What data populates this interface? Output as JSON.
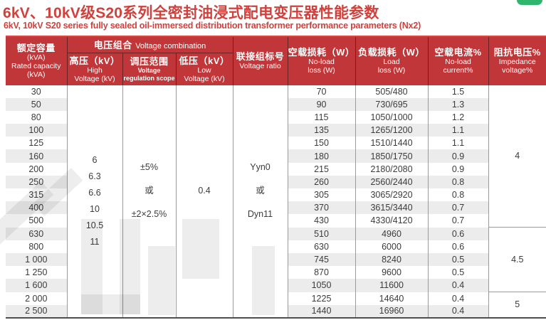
{
  "title": "6kV、10kV级S20系列全密封油浸式配电变压器性能参数",
  "subtitle": "6kV, 10kV S20 series fully sealed oil-immersed distribution transformer performance parameters (Nx2)",
  "colors": {
    "title_red": "#d2403c",
    "header_bg": "#c13638",
    "header_top_line": "#da453f",
    "header_divider": "#6b2021",
    "row_stripe": "#ececec",
    "grid_line": "#9a9a9a",
    "table_bottom_line": "#4e4e4e",
    "body_text": "#3c3c3c",
    "green_tab": "#2fb56d"
  },
  "table": {
    "col_headers": {
      "capacity": {
        "zh": "额定容量",
        "l2": "(kVA)",
        "en": "Rated capacity",
        "l4": "(kVA)"
      },
      "voltage_group": {
        "zh": "电压组合",
        "en": "Voltage combination"
      },
      "high": {
        "zh": "高压（kV）",
        "en1": "High",
        "en2": "Voltage (kV)"
      },
      "regulation": {
        "zh": "调压范围",
        "en1": "Voltage",
        "en2": "regulation scope"
      },
      "low": {
        "zh": "低压（kV）",
        "en1": "Low",
        "en2": "Voltage (kV)"
      },
      "vector": {
        "zh": "联接组标号",
        "en": "Voltage ratio"
      },
      "no_load_loss": {
        "zh": "空载损耗（W）",
        "en1": "No-load",
        "en2": "loss (W)"
      },
      "load_loss": {
        "zh": "负载损耗（W）",
        "en1": "Load",
        "en2": "loss (W)"
      },
      "no_load_current": {
        "zh": "空载电流%",
        "en1": "No-load",
        "en2": "current%"
      },
      "impedance": {
        "zh": "阻抗电压%",
        "en1": "Impedance",
        "en2": "voltage%"
      }
    },
    "rows": [
      {
        "capacity": "30",
        "no_load_loss": "70",
        "load_loss": "505/480",
        "no_load_current": "1.5"
      },
      {
        "capacity": "50",
        "no_load_loss": "90",
        "load_loss": "730/695",
        "no_load_current": "1.3"
      },
      {
        "capacity": "80",
        "no_load_loss": "115",
        "load_loss": "1050/1000",
        "no_load_current": "1.2"
      },
      {
        "capacity": "100",
        "no_load_loss": "135",
        "load_loss": "1265/1200",
        "no_load_current": "1.1"
      },
      {
        "capacity": "125",
        "no_load_loss": "150",
        "load_loss": "1510/1440",
        "no_load_current": "1.1"
      },
      {
        "capacity": "160",
        "no_load_loss": "180",
        "load_loss": "1850/1750",
        "no_load_current": "0.9"
      },
      {
        "capacity": "200",
        "no_load_loss": "215",
        "load_loss": "2180/2080",
        "no_load_current": "0.9"
      },
      {
        "capacity": "250",
        "no_load_loss": "260",
        "load_loss": "2560/2440",
        "no_load_current": "0.8"
      },
      {
        "capacity": "315",
        "no_load_loss": "305",
        "load_loss": "3065/2920",
        "no_load_current": "0.8"
      },
      {
        "capacity": "400",
        "no_load_loss": "370",
        "load_loss": "3615/3440",
        "no_load_current": "0.7"
      },
      {
        "capacity": "500",
        "no_load_loss": "430",
        "load_loss": "4330/4120",
        "no_load_current": "0.7"
      },
      {
        "capacity": "630",
        "no_load_loss": "510",
        "load_loss": "4960",
        "no_load_current": "0.6"
      },
      {
        "capacity": "800",
        "no_load_loss": "630",
        "load_loss": "6000",
        "no_load_current": "0.6"
      },
      {
        "capacity": "1 000",
        "no_load_loss": "745",
        "load_loss": "8240",
        "no_load_current": "0.5"
      },
      {
        "capacity": "1 250",
        "no_load_loss": "870",
        "load_loss": "9600",
        "no_load_current": "0.5"
      },
      {
        "capacity": "1 600",
        "no_load_loss": "1050",
        "load_loss": "11600",
        "no_load_current": "0.4"
      },
      {
        "capacity": "2 000",
        "no_load_loss": "1225",
        "load_loss": "14640",
        "no_load_current": "0.4"
      },
      {
        "capacity": "2 500",
        "no_load_loss": "1440",
        "load_loss": "16960",
        "no_load_current": "0.4"
      }
    ],
    "merged": {
      "high_voltage_values": [
        "6",
        "6.3",
        "6.6",
        "10",
        "10.5",
        "11"
      ],
      "regulation_lines": [
        "±5%",
        "或",
        "±2×2.5%"
      ],
      "low_voltage": "0.4",
      "vector_lines": [
        "Yyn0",
        "或",
        "Dyn11"
      ],
      "impedance_groups": [
        {
          "value": "4",
          "rows": 11
        },
        {
          "value": "4.5",
          "rows": 5
        },
        {
          "value": "5",
          "rows": 2
        }
      ]
    }
  }
}
